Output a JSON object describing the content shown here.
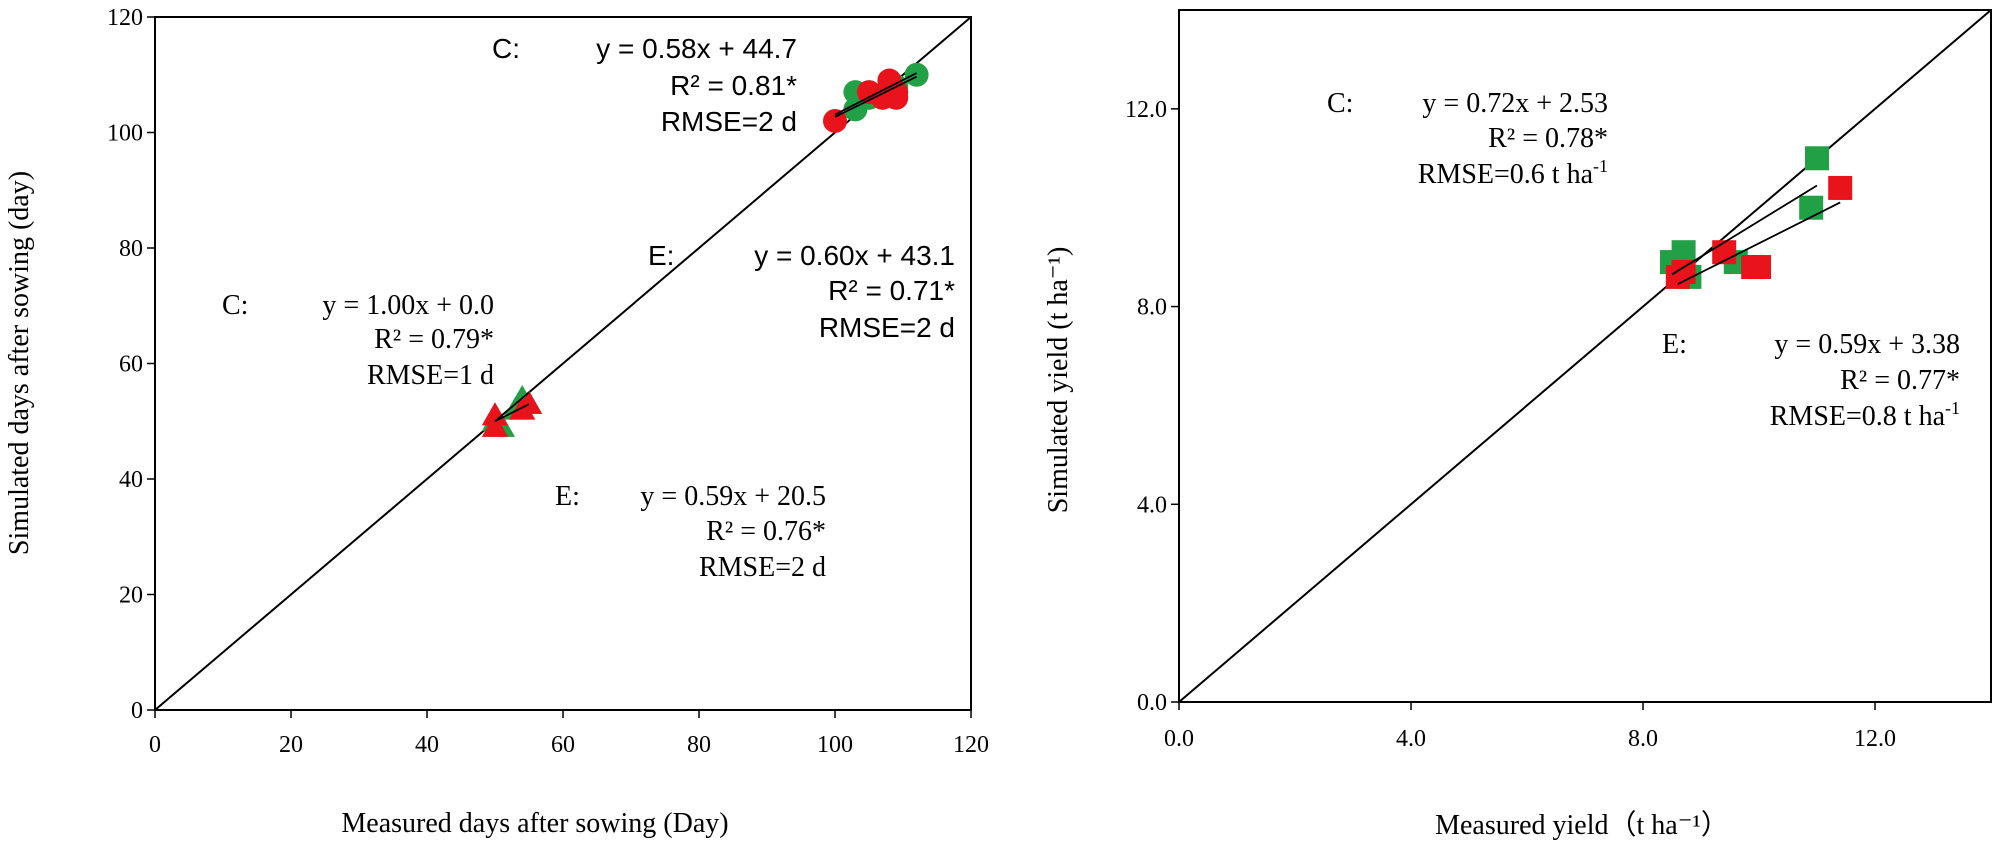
{
  "chart_data": [
    {
      "type": "scatter",
      "xlabel": "Measured days after sowing (Day)",
      "ylabel": "Simulated days after sowing (day)",
      "xlim": [
        0,
        120
      ],
      "ylim": [
        0,
        120
      ],
      "x_ticks": [
        0,
        20,
        40,
        60,
        80,
        100,
        120
      ],
      "y_ticks": [
        0,
        20,
        40,
        60,
        80,
        100,
        120
      ],
      "x_tick_labels": [
        "0",
        "20",
        "40",
        "60",
        "80",
        "100",
        "120"
      ],
      "y_tick_labels": [
        "0",
        "20",
        "40",
        "60",
        "80",
        "100",
        "120"
      ],
      "identity_line": true,
      "grid": false,
      "series": [
        {
          "marker": "triangle",
          "color": "#22a046",
          "points": [
            [
              50,
              50
            ],
            [
              51,
              49
            ],
            [
              53,
              52
            ],
            [
              54,
              54
            ],
            [
              55,
              53
            ]
          ]
        },
        {
          "marker": "triangle",
          "color": "#e8131b",
          "points": [
            [
              50,
              51
            ],
            [
              50,
              49
            ],
            [
              54,
              52
            ],
            [
              55,
              53
            ]
          ]
        },
        {
          "marker": "circle",
          "color": "#22a046",
          "points": [
            [
              103,
              107
            ],
            [
              103,
              104
            ],
            [
              105,
              106
            ],
            [
              108,
              107
            ],
            [
              109,
              108
            ],
            [
              112,
              110
            ]
          ]
        },
        {
          "marker": "circle",
          "color": "#e8131b",
          "points": [
            [
              100,
              102
            ],
            [
              105,
              107
            ],
            [
              107,
              106
            ],
            [
              108,
              108
            ],
            [
              108,
              109
            ],
            [
              109,
              107
            ],
            [
              109,
              106
            ]
          ]
        }
      ],
      "fit_lines": [
        {
          "x": [
            50,
            55
          ],
          "slope": 1.0,
          "intercept": 0.0
        },
        {
          "x": [
            50,
            55
          ],
          "slope": 0.59,
          "intercept": 20.5
        },
        {
          "x": [
            100,
            112
          ],
          "slope": 0.58,
          "intercept": 44.7
        },
        {
          "x": [
            100,
            112
          ],
          "slope": 0.6,
          "intercept": 43.1
        }
      ],
      "annotations": [
        {
          "label": "C:",
          "eq": "y = 0.58x + 44.7",
          "r2": "R² = 0.81*",
          "rmse": "RMSE=2 d"
        },
        {
          "label": "E:",
          "eq": "y = 0.60x + 43.1",
          "r2": "R² = 0.71*",
          "rmse": "RMSE=2 d"
        },
        {
          "label": "C:",
          "eq": "y = 1.00x + 0.0",
          "r2": "R² = 0.79*",
          "rmse": "RMSE=1 d"
        },
        {
          "label": "E:",
          "eq": "y = 0.59x + 20.5",
          "r2": "R² = 0.76*",
          "rmse": "RMSE=2 d"
        }
      ]
    },
    {
      "type": "scatter",
      "xlabel": "Measured yield（t ha⁻¹）",
      "ylabel": "Simulated  yield (t ha⁻¹)",
      "xlim": [
        0,
        14
      ],
      "ylim": [
        0,
        14
      ],
      "x_ticks": [
        0,
        4,
        8,
        12
      ],
      "y_ticks": [
        0,
        4,
        8,
        12
      ],
      "x_tick_labels": [
        "0.0",
        "4.0",
        "8.0",
        "12.0"
      ],
      "y_tick_labels": [
        "0.0",
        "4.0",
        "8.0",
        "12.0"
      ],
      "identity_line": true,
      "grid": false,
      "series": [
        {
          "marker": "square",
          "color": "#22a046",
          "points": [
            [
              8.5,
              8.9
            ],
            [
              8.7,
              9.1
            ],
            [
              8.8,
              8.6
            ],
            [
              9.6,
              8.9
            ],
            [
              10.9,
              10.0
            ],
            [
              11.0,
              11.0
            ]
          ]
        },
        {
          "marker": "square",
          "color": "#e8131b",
          "points": [
            [
              8.6,
              8.6
            ],
            [
              8.7,
              8.7
            ],
            [
              9.4,
              9.1
            ],
            [
              9.9,
              8.8
            ],
            [
              10.0,
              8.8
            ],
            [
              11.4,
              10.4
            ]
          ]
        }
      ],
      "fit_lines": [
        {
          "x": [
            8.5,
            11.0
          ],
          "slope": 0.72,
          "intercept": 2.53
        },
        {
          "x": [
            8.6,
            11.4
          ],
          "slope": 0.59,
          "intercept": 3.38
        }
      ],
      "annotations": [
        {
          "label": "C:",
          "eq": "y = 0.72x + 2.53",
          "r2": "R² = 0.78*",
          "rmse_base": "RMSE=0.6 t ha",
          "rmse_sup": "-1"
        },
        {
          "label": "E:",
          "eq": "y = 0.59x + 3.38",
          "r2": "R² = 0.77*",
          "rmse_base": "RMSE=0.8 t ha",
          "rmse_sup": "-1"
        }
      ]
    }
  ]
}
